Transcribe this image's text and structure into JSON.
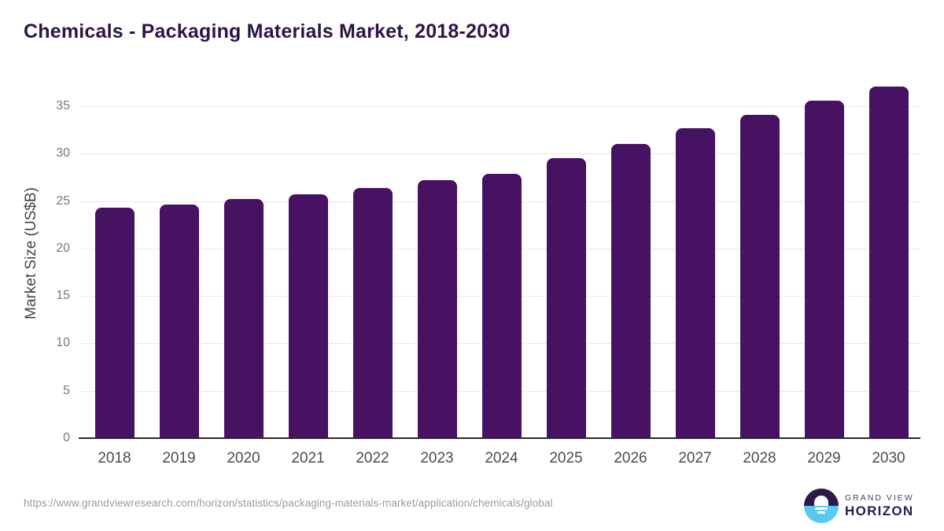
{
  "title": "Chemicals - Packaging Materials Market, 2018-2030",
  "chart_data": {
    "type": "bar",
    "title": "Chemicals - Packaging Materials Market, 2018-2030",
    "categories": [
      "2018",
      "2019",
      "2020",
      "2021",
      "2022",
      "2023",
      "2024",
      "2025",
      "2026",
      "2027",
      "2028",
      "2029",
      "2030"
    ],
    "values": [
      24.3,
      24.6,
      25.2,
      25.7,
      26.4,
      27.2,
      27.9,
      29.5,
      31.0,
      32.7,
      34.1,
      35.6,
      37.1
    ],
    "xlabel": "",
    "ylabel": "Market Size (US$B)",
    "ylim": [
      0,
      38
    ],
    "yticks": [
      0,
      5,
      10,
      15,
      20,
      25,
      30,
      35
    ],
    "grid": true,
    "legend": false,
    "bar_color": "#471262"
  },
  "colors": {
    "title": "#2d1547",
    "bar": "#471262",
    "gridline": "#e9e9e9",
    "axis_line": "#2b2b2b",
    "y_tick_label": "#7a7a7a",
    "x_tick_label": "#4b4b4b",
    "y_axis_title": "#454545",
    "source_url": "#9b9b9b",
    "logo_purple": "#2b1b4d",
    "logo_blue": "#5ac8f0"
  },
  "footer": {
    "source_url": "https://www.grandviewresearch.com/horizon/statistics/packaging-materials-market/application/chemicals/global",
    "logo": {
      "top": "GRAND VIEW",
      "bottom": "HORIZON"
    }
  }
}
